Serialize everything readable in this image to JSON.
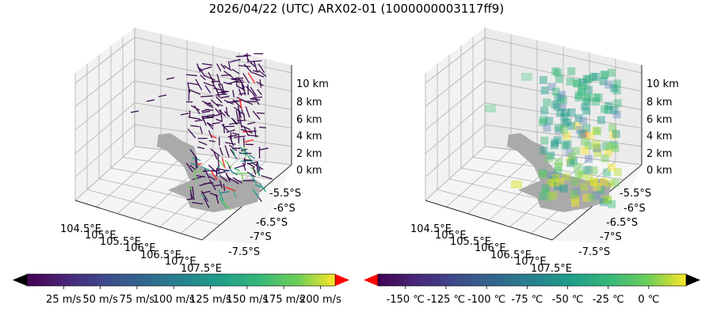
{
  "title": "2026/04/22 (UTC) ARX02-01 (1000000003117ff9)",
  "chart_data": [
    {
      "type": "scatter",
      "subtype": "3d-wind-barbs",
      "z_ticks": [
        "10 km",
        "8 km",
        "6 km",
        "4 km",
        "2 km",
        "0 km"
      ],
      "lat_ticks": [
        "-5.5°S",
        "-6°S",
        "-6.5°S",
        "-7°S",
        "-7.5°S"
      ],
      "lon_ticks": [
        "104.5°E",
        "105°E",
        "105.5°E",
        "106°E",
        "106.5°E",
        "107°E",
        "107.5°E"
      ],
      "colorbar": {
        "ticks": [
          "25 m/s",
          "50 m/s",
          "75 m/s",
          "100 m/s",
          "125 m/s",
          "150 m/s",
          "175 m/s",
          "200 m/s"
        ],
        "tick_values": [
          25,
          50,
          75,
          100,
          125,
          150,
          175,
          200
        ],
        "range": [
          0,
          210
        ],
        "colormap": "viridis",
        "under_color": "#000000",
        "over_color": "#ff0000"
      }
    },
    {
      "type": "scatter",
      "subtype": "3d-voxels-temperature",
      "z_ticks": [
        "10 km",
        "8 km",
        "6 km",
        "4 km",
        "2 km",
        "0 km"
      ],
      "lat_ticks": [
        "-5.5°S",
        "-6°S",
        "-6.5°S",
        "-7°S",
        "-7.5°S"
      ],
      "lon_ticks": [
        "104.5°E",
        "105°E",
        "105.5°E",
        "106°E",
        "106.5°E",
        "107°E",
        "107.5°E"
      ],
      "colorbar": {
        "ticks": [
          "-150 ℃",
          "-125 ℃",
          "-100 ℃",
          "-75 ℃",
          "-50 ℃",
          "-25 ℃",
          "0 ℃"
        ],
        "tick_values": [
          -150,
          -125,
          -100,
          -75,
          -50,
          -25,
          0
        ],
        "range": [
          -167,
          23
        ],
        "colormap": "viridis",
        "under_color": "#ff0000",
        "over_color": "#000000"
      }
    }
  ]
}
